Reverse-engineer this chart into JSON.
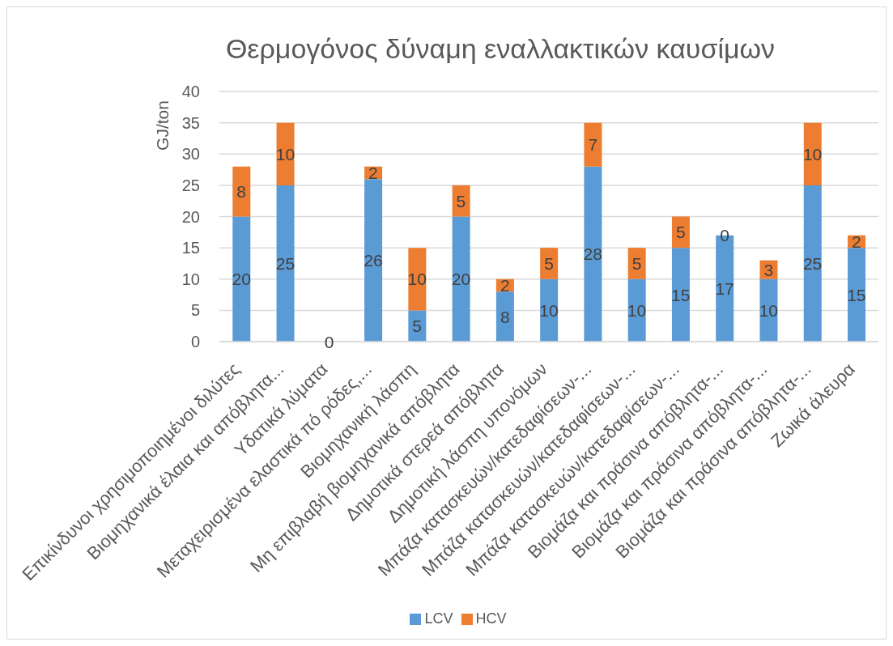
{
  "chart_data": {
    "type": "bar",
    "title": "Θερμογόνος δύναμη εναλλακτικών καυσίμων",
    "ylabel": "GJ/ton",
    "categories": [
      "Επικίνδυνοι χρησιμοποιημένοι διλύτες",
      "Βιομηχανικά έλαια και απόβλητα...",
      "Υδατικά λύματα",
      "Μεταχειρισμένα ελαστικά πό ρόδες,...",
      "Βιομηχανική λάσπη",
      "Μη επιβλαβή βιομηχανικά απόβλητα",
      "Δημοτικά στερεά απόβλητα",
      "Δημοτική λάσπη υπονόμων",
      "Μπάζα κατασκευών/κατεδαφίσεων-...",
      "Μπάζα κατασκευών/κατεδαφίσεων-...",
      "Μπάζα κατασκευών/κατεδαφίσεων-...",
      "Βιομάζα και πράσινα απόβλητα-...",
      "Βιομάζα και πράσινα απόβλητα-...",
      "Βιομάζα και πράσινα απόβλητα-...",
      "Ζωικά άλευρα"
    ],
    "series": [
      {
        "name": "LCV",
        "color": "#5b9bd5",
        "values": [
          20,
          25,
          0,
          26,
          5,
          20,
          8,
          10,
          28,
          10,
          15,
          17,
          10,
          25,
          15
        ],
        "value_labels": [
          "20",
          "25",
          "0",
          "26",
          "5",
          "20",
          "8",
          "10",
          "28",
          "10",
          "15",
          "17",
          "10",
          "25",
          "15"
        ]
      },
      {
        "name": "HCV",
        "color": "#ed7d31",
        "values": [
          8,
          10,
          0,
          2,
          10,
          5,
          2,
          5,
          7,
          5,
          5,
          0,
          3,
          10,
          2
        ],
        "value_labels": [
          "8",
          "10",
          null,
          "2",
          "10",
          "5",
          "2",
          "5",
          "7",
          "5",
          "5",
          "0",
          "3",
          "10",
          "2"
        ]
      }
    ],
    "stacked": true,
    "ylim": [
      0,
      40
    ],
    "yticks": [
      0,
      5,
      10,
      15,
      20,
      25,
      30,
      35,
      40
    ],
    "grid": "y",
    "legend": "bottom"
  }
}
